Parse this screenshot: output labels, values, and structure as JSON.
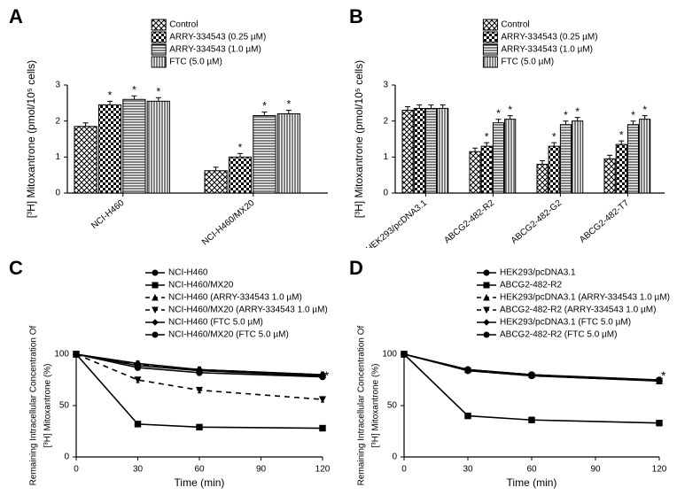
{
  "panel_labels": {
    "A": "A",
    "B": "B",
    "C": "C",
    "D": "D"
  },
  "colors": {
    "black": "#000000",
    "white": "#ffffff"
  },
  "chartA": {
    "type": "bar",
    "ylabel": "[³H] Mitoxantrone (pmol/10⁵ cells)",
    "label_fontsize": 12,
    "ylim": [
      0,
      3
    ],
    "ytick_step": 1,
    "tick_fontsize": 10,
    "groups": [
      "NCI-H460",
      "NCI-H460/MX20"
    ],
    "series": [
      {
        "label": "Control",
        "pattern": "crosshatch",
        "values": [
          1.85,
          0.62
        ],
        "annot": [
          "",
          ""
        ]
      },
      {
        "label": "ARRY-334543 (0.25 µM)",
        "pattern": "checker",
        "values": [
          2.45,
          1.0
        ],
        "annot": [
          "*",
          "*"
        ]
      },
      {
        "label": "ARRY-334543 (1.0 µM)",
        "pattern": "hlines",
        "values": [
          2.6,
          2.15
        ],
        "annot": [
          "*",
          "*"
        ]
      },
      {
        "label": "FTC (5.0 µM)",
        "pattern": "vlines",
        "values": [
          2.55,
          2.2
        ],
        "annot": [
          "*",
          "*"
        ]
      }
    ],
    "bar_width": 0.8,
    "group_gap": 1.2,
    "legend_fontsize": 10,
    "axis_stroke": "#000000"
  },
  "chartB": {
    "type": "bar",
    "ylabel": "[³H] Mitoxantrone (pmol/10⁵ cells)",
    "label_fontsize": 12,
    "ylim": [
      0,
      3
    ],
    "ytick_step": 1,
    "tick_fontsize": 10,
    "groups": [
      "HEK293/pcDNA3.1",
      "ABCG2-482-R2",
      "ABCG2-482-G2",
      "ABCG2-482-T7"
    ],
    "series": [
      {
        "label": "Control",
        "pattern": "crosshatch",
        "values": [
          2.3,
          1.15,
          0.8,
          0.95
        ],
        "annot": [
          "",
          "",
          "",
          ""
        ]
      },
      {
        "label": "ARRY-334543 (0.25 µM)",
        "pattern": "checker",
        "values": [
          2.35,
          1.3,
          1.3,
          1.35
        ],
        "annot": [
          "",
          "*",
          "*",
          "*"
        ]
      },
      {
        "label": "ARRY-334543 (1.0 µM)",
        "pattern": "hlines",
        "values": [
          2.35,
          1.95,
          1.9,
          1.9
        ],
        "annot": [
          "",
          "*",
          "*",
          "*"
        ]
      },
      {
        "label": "FTC (5.0 µM)",
        "pattern": "vlines",
        "values": [
          2.35,
          2.05,
          2.0,
          2.05
        ],
        "annot": [
          "",
          "*",
          "*",
          "*"
        ]
      }
    ],
    "bar_width": 0.8,
    "group_gap": 1.0,
    "legend_fontsize": 10,
    "axis_stroke": "#000000"
  },
  "chartC": {
    "type": "line",
    "ylabel_top": "Remaining Intracellular Concentration Of",
    "ylabel_bottom": "[³H] Mitoxantrone (%)",
    "xlabel": "Time (min)",
    "label_fontsize": 12,
    "tick_fontsize": 10,
    "xlim": [
      0,
      120
    ],
    "xtick_step": 30,
    "ylim": [
      0,
      100
    ],
    "ytick_step": 50,
    "series": [
      {
        "label": "NCI-H460",
        "marker": "circle",
        "dash": "none",
        "points": [
          [
            0,
            100
          ],
          [
            30,
            89
          ],
          [
            60,
            84
          ],
          [
            120,
            79
          ]
        ]
      },
      {
        "label": "NCI-H460/MX20",
        "marker": "square",
        "dash": "none",
        "points": [
          [
            0,
            100
          ],
          [
            30,
            32
          ],
          [
            60,
            29
          ],
          [
            120,
            28
          ]
        ]
      },
      {
        "label": "NCI-H460 (ARRY-334543 1.0 µM)",
        "marker": "triangle",
        "dash": "dashed",
        "points": [
          [
            0,
            100
          ],
          [
            30,
            90
          ],
          [
            60,
            85
          ],
          [
            120,
            80
          ]
        ]
      },
      {
        "label": "NCI-H460/MX20 (ARRY-334543 1.0 µM)",
        "marker": "triangle-dn",
        "dash": "dashed",
        "points": [
          [
            0,
            100
          ],
          [
            30,
            75
          ],
          [
            60,
            65
          ],
          [
            120,
            56
          ]
        ]
      },
      {
        "label": "NCI-H460 (FTC 5.0 µM)",
        "marker": "diamond",
        "dash": "none",
        "points": [
          [
            0,
            100
          ],
          [
            30,
            91
          ],
          [
            60,
            85
          ],
          [
            120,
            80
          ]
        ]
      },
      {
        "label": "NCI-H460/MX20 (FTC 5.0 µM)",
        "marker": "circle",
        "dash": "none",
        "points": [
          [
            0,
            100
          ],
          [
            30,
            87
          ],
          [
            60,
            82
          ],
          [
            120,
            78
          ]
        ]
      }
    ],
    "side_star": "*",
    "axis_stroke": "#000000"
  },
  "chartD": {
    "type": "line",
    "ylabel_top": "Remaining Intracellular Concentration Of",
    "ylabel_bottom": "[³H] Mitoxantrone (%)",
    "xlabel": "Time (min)",
    "label_fontsize": 12,
    "tick_fontsize": 10,
    "xlim": [
      0,
      120
    ],
    "xtick_step": 30,
    "ylim": [
      0,
      100
    ],
    "ytick_step": 50,
    "series": [
      {
        "label": "HEK293/pcDNA3.1",
        "marker": "circle",
        "dash": "none",
        "points": [
          [
            0,
            100
          ],
          [
            30,
            85
          ],
          [
            60,
            80
          ],
          [
            120,
            74
          ]
        ]
      },
      {
        "label": "ABCG2-482-R2",
        "marker": "square",
        "dash": "none",
        "points": [
          [
            0,
            100
          ],
          [
            30,
            40
          ],
          [
            60,
            36
          ],
          [
            120,
            33
          ]
        ]
      },
      {
        "label": "HEK293/pcDNA3.1 (ARRY-334543 1.0 µM)",
        "marker": "triangle",
        "dash": "dashed",
        "points": [
          [
            0,
            100
          ],
          [
            30,
            85
          ],
          [
            60,
            80
          ],
          [
            120,
            74
          ]
        ]
      },
      {
        "label": "ABCG2-482-R2 (ARRY-334543 1.0 µM)",
        "marker": "triangle-dn",
        "dash": "dashed",
        "points": [
          [
            0,
            100
          ],
          [
            30,
            84
          ],
          [
            60,
            79
          ],
          [
            120,
            74
          ]
        ]
      },
      {
        "label": "HEK293/pcDNA3.1 (FTC 5.0 µM)",
        "marker": "diamond",
        "dash": "none",
        "points": [
          [
            0,
            100
          ],
          [
            30,
            85
          ],
          [
            60,
            80
          ],
          [
            120,
            75
          ]
        ]
      },
      {
        "label": "ABCG2-482-R2 (FTC 5.0 µM)",
        "marker": "circle",
        "dash": "none",
        "points": [
          [
            0,
            100
          ],
          [
            30,
            84
          ],
          [
            60,
            79
          ],
          [
            120,
            74
          ]
        ]
      }
    ],
    "side_star": "*",
    "axis_stroke": "#000000"
  }
}
